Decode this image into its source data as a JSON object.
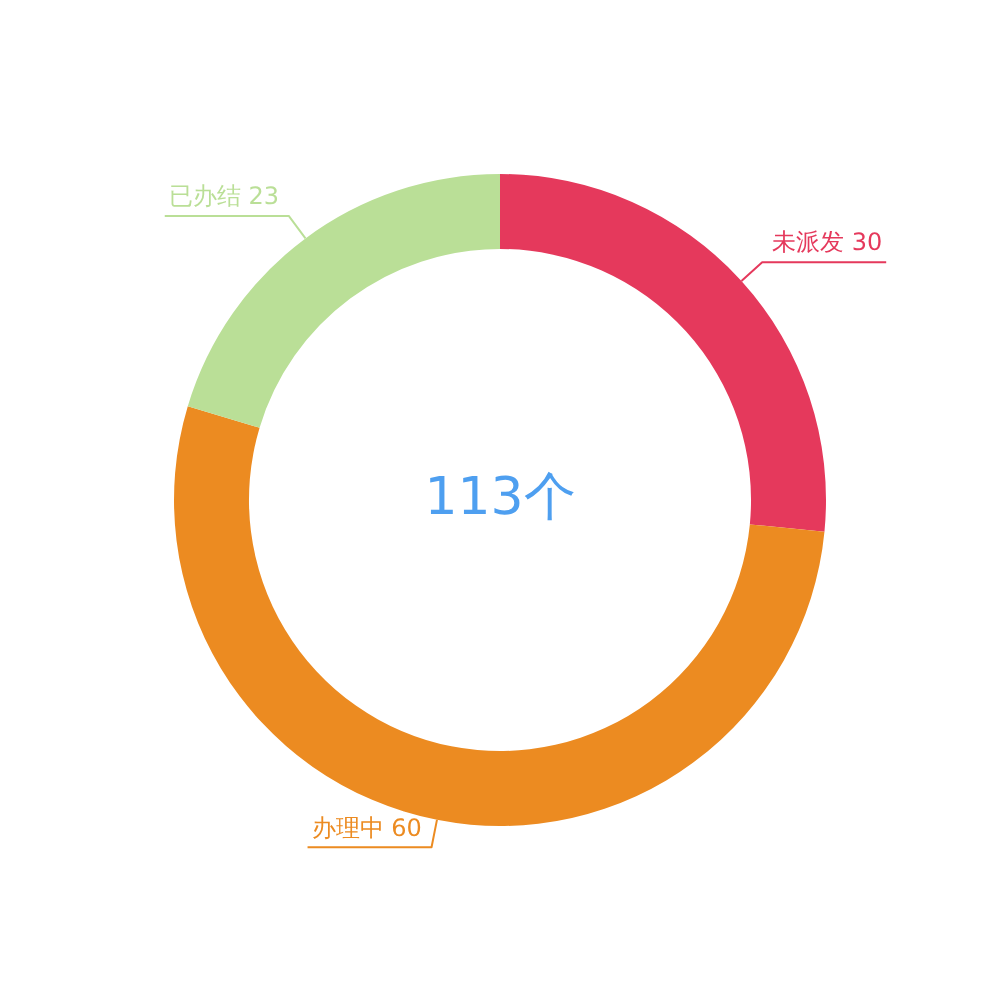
{
  "chart_data": {
    "type": "donut",
    "categories": [
      "未派发",
      "办理中",
      "已办结"
    ],
    "values": [
      30,
      60,
      23
    ],
    "colors": [
      "#e5395c",
      "#ec8b21",
      "#badf97"
    ],
    "data_labels": true,
    "annotations": [
      "113个"
    ]
  }
}
